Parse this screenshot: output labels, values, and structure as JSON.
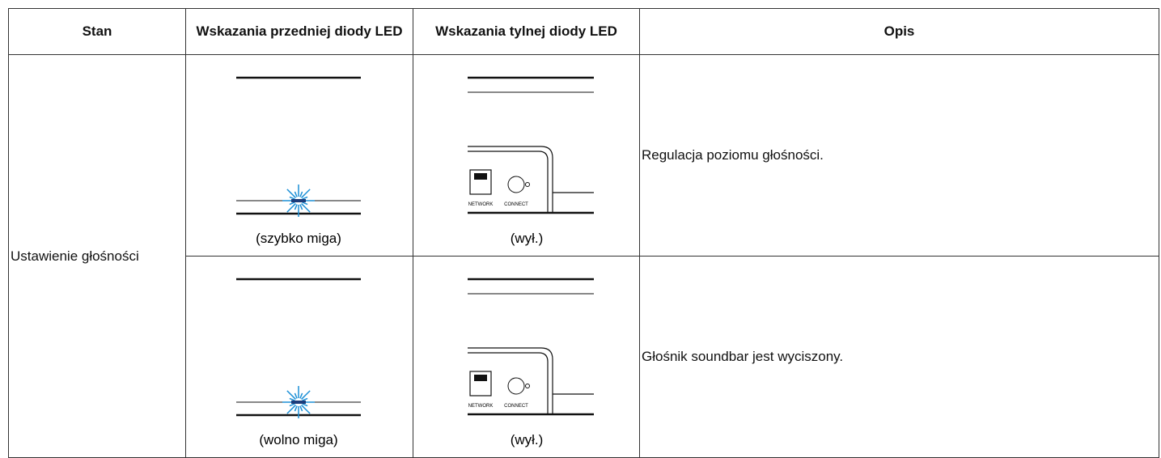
{
  "table": {
    "header": [
      "Stan",
      "Wskazania przedniej diody LED",
      "Wskazania tylnej diody LED",
      "Opis"
    ],
    "rows": [
      {
        "state": "Ustawienie głośności",
        "front": "(szybko miga)",
        "rear": "(wył.)",
        "description": "Regulacja poziomu głośności."
      },
      {
        "front": "(wolno miga)",
        "rear": "(wył.)",
        "description": "Głośnik soundbar jest wyciszony."
      }
    ]
  },
  "panel_labels": [
    "NETWORK",
    "CONNECT"
  ]
}
